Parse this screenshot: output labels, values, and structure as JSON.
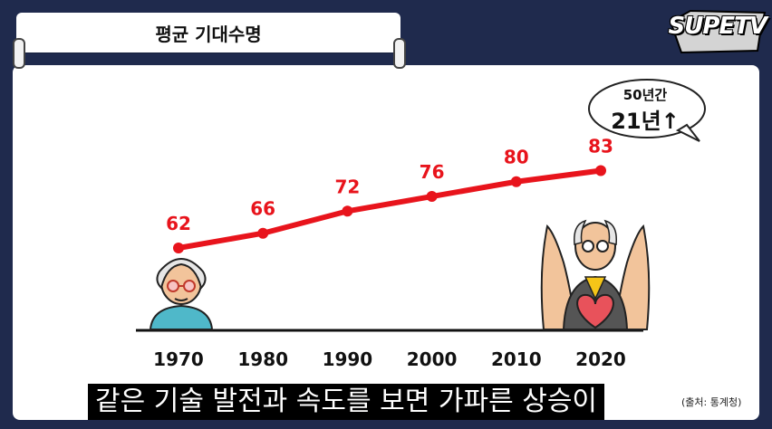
{
  "title": "평균 기대수명",
  "logo_text": "SUPETV",
  "callout": {
    "line1": "50년간",
    "line2": "21년↑"
  },
  "subtitle": "같은 기술 발전과 속도를 보면 가파른 상승이",
  "source": "(출처: 통계청)",
  "colors": {
    "line": "#e8141c",
    "background": "#1f2a4d",
    "axis": "#111111"
  },
  "chart_data": {
    "type": "line",
    "categories": [
      "1970",
      "1980",
      "1990",
      "2000",
      "2010",
      "2020"
    ],
    "series": [
      {
        "values": [
          62,
          66,
          72,
          76,
          80,
          83
        ]
      }
    ],
    "title": "평균 기대수명",
    "xlabel": "",
    "ylabel": "",
    "grid": false,
    "legend": "none",
    "data_labels": true,
    "icons": [
      "elderly-person-1970-icon",
      "elderly-man-hands-heart-2020-icon"
    ]
  }
}
